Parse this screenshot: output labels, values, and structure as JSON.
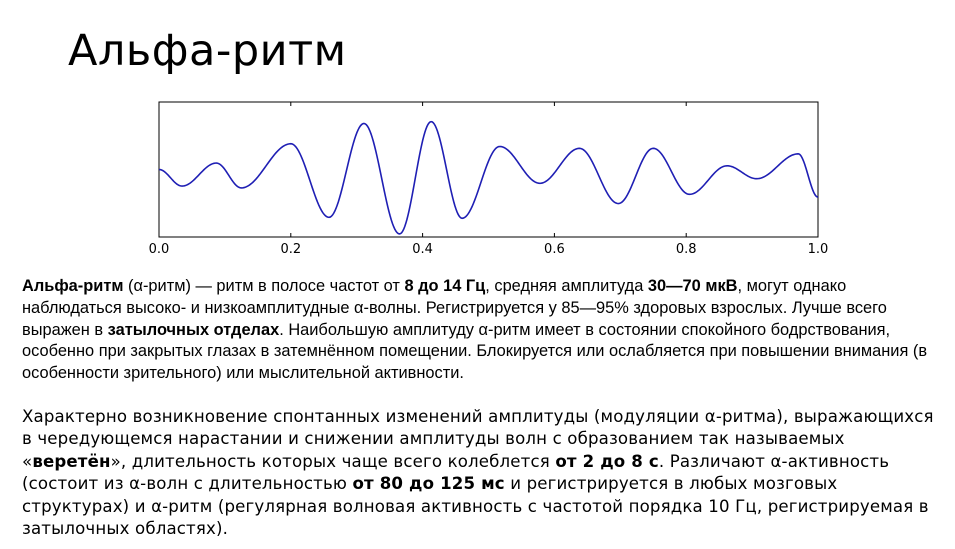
{
  "title": "Альфа-ритм",
  "chart_data": {
    "type": "line",
    "title": "",
    "xlabel": "",
    "ylabel": "",
    "xlim": [
      0.0,
      1.0
    ],
    "x_ticks": [
      "0.0",
      "0.2",
      "0.4",
      "0.6",
      "0.8",
      "1.0"
    ],
    "y_ticks": [],
    "grid": false,
    "line_color": "#1f1fb4",
    "series": [
      {
        "x": [
          0.0,
          0.035,
          0.087,
          0.125,
          0.2,
          0.258,
          0.311,
          0.365,
          0.413,
          0.46,
          0.517,
          0.578,
          0.638,
          0.697,
          0.75,
          0.805,
          0.862,
          0.907,
          0.97,
          1.0
        ],
        "values": [
          0.0,
          -0.18,
          0.07,
          -0.2,
          0.28,
          -0.52,
          0.5,
          -0.7,
          0.52,
          -0.53,
          0.25,
          -0.15,
          0.23,
          -0.37,
          0.23,
          -0.27,
          0.04,
          -0.1,
          0.17,
          -0.3
        ]
      }
    ]
  },
  "para1": {
    "s1": "Альфа-ритм",
    "s2": " (α-ритм) — ритм в полосе частот от ",
    "s3": "8 до 14 Гц",
    "s4": ", средняя амплитуда ",
    "s5": "30—70 мкВ",
    "s6": ", могут однако наблюдаться высоко- и низкоамплитудные α-волны. Регистрируется у 85—95% здоровых взрослых. Лучше всего выражен в ",
    "s7": "затылочных отделах",
    "s8": ". Наибольшую амплитуду α-ритм имеет в состоянии спокойного бодрствования, особенно при закрытых глазах в затемнённом помещении. Блокируется или ослабляется при повышении внимания (в особенности зрительного) или мыслительной активности."
  },
  "para2": {
    "s1": "Характерно возникновение спонтанных изменений амплитуды (модуляции α-ритма), выражающихся в чередующемся нарастании и снижении амплитуды волн с образованием так называемых «",
    "s2": "веретён",
    "s3": "», длительность которых чаще всего колеблется ",
    "s4": "от 2 до 8 с",
    "s5": ". Различают α-активность (состоит из α-волн с длительностью ",
    "s6": "от 80 до 125 мс",
    "s7": " и регистрируется в любых мозговых структурах) и α-ритм (регулярная волновая активность с частотой порядка 10 Гц, регистрируемая в затылочных областях)."
  }
}
